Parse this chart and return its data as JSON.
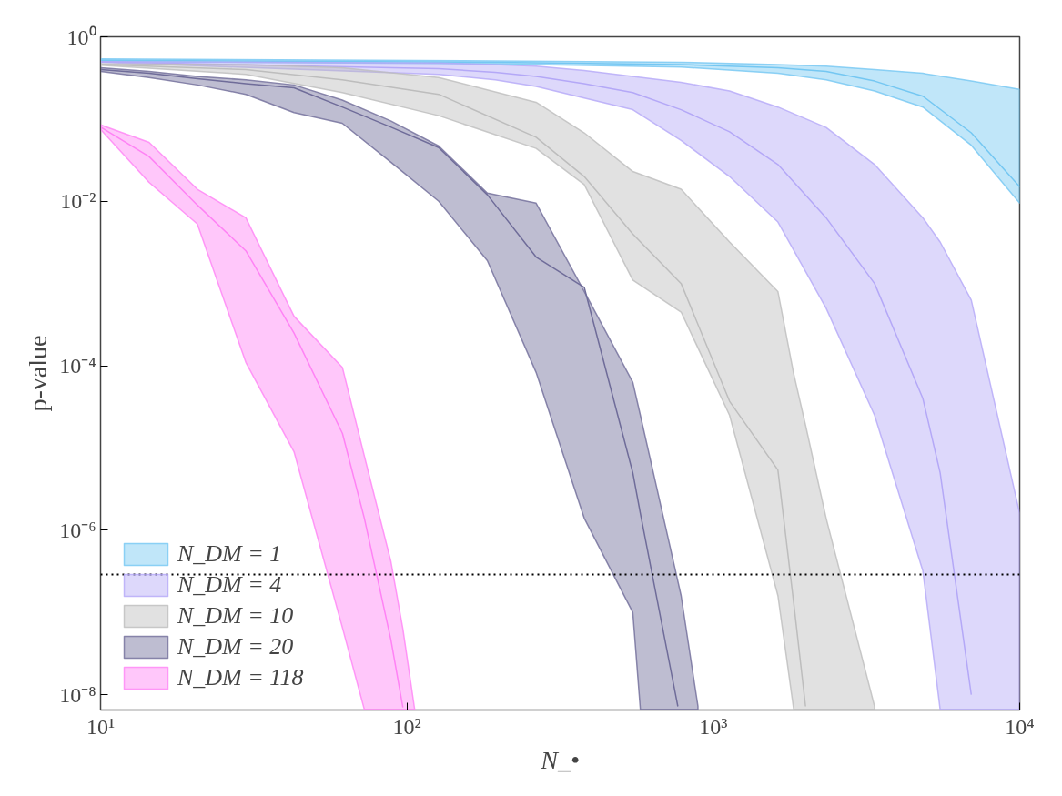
{
  "chart_data": {
    "type": "line",
    "xlabel": "N_•",
    "ylabel": "p-value",
    "xlim": [
      10,
      10000
    ],
    "ylim": [
      6.5e-09,
      1
    ],
    "log": "xy",
    "grid": false,
    "legend": "bottom left",
    "line_style": "solid",
    "xticks": [
      {
        "value": 10,
        "label": "10¹"
      },
      {
        "value": 100,
        "label": "10²"
      },
      {
        "value": 1000,
        "label": "10³"
      },
      {
        "value": 10000,
        "label": "10⁴"
      }
    ],
    "yticks": [
      {
        "value": 1e-08,
        "label": "10⁻⁸"
      },
      {
        "value": 1e-06,
        "label": "10⁻⁶"
      },
      {
        "value": 0.0001,
        "label": "10⁻⁴"
      },
      {
        "value": 0.01,
        "label": "10⁻²"
      },
      {
        "value": 1,
        "label": "10⁰"
      }
    ],
    "ref_lines": [
      {
        "axis": "y",
        "value": 2.9e-07,
        "color": "#000000",
        "line_style": "dotted"
      }
    ],
    "series": [
      {
        "name": "N_DM = 1",
        "color": "#74c7f2",
        "x": [
          10,
          194,
          785,
          1625,
          2335,
          3360,
          4830,
          6950,
          10000
        ],
        "values": [
          0.52,
          0.49,
          0.46,
          0.42,
          0.38,
          0.29,
          0.19,
          0.068,
          0.015
        ],
        "upper": [
          0.54,
          0.51,
          0.49,
          0.46,
          0.44,
          0.4,
          0.36,
          0.29,
          0.23
        ],
        "lower": [
          0.5,
          0.47,
          0.43,
          0.36,
          0.3,
          0.22,
          0.14,
          0.048,
          0.0095
        ]
      },
      {
        "name": "N_DM = 4",
        "color": "#b4a8f7",
        "x": [
          10,
          127,
          194,
          264,
          379,
          546,
          785,
          1130,
          1625,
          2335,
          3360,
          4830,
          5500,
          6950,
          10000
        ],
        "values": [
          0.495,
          0.41,
          0.37,
          0.33,
          0.27,
          0.21,
          0.13,
          0.07,
          0.028,
          0.0063,
          0.001,
          4e-05,
          5e-06,
          1e-08,
          null
        ],
        "upper": [
          0.5,
          0.48,
          0.46,
          0.44,
          0.39,
          0.33,
          0.28,
          0.22,
          0.14,
          0.079,
          0.028,
          0.0063,
          0.0032,
          0.00063,
          1.6e-06
        ],
        "lower": [
          0.49,
          0.35,
          0.3,
          0.25,
          0.18,
          0.13,
          0.055,
          0.02,
          0.0056,
          0.0005,
          2.5e-05,
          3.2e-07,
          6.6e-09,
          6.6e-09,
          6.6e-09
        ]
      },
      {
        "name": "N_DM = 10",
        "color": "#bdbdbd",
        "x": [
          10,
          29.8,
          61.5,
          127,
          264,
          379,
          546,
          785,
          1130,
          1625,
          1830,
          2000,
          2335,
          3360
        ],
        "values": [
          0.46,
          0.4,
          0.3,
          0.2,
          0.06,
          0.02,
          0.004,
          0.001,
          3.7e-05,
          5.4e-06,
          1.3e-07,
          7.2e-09,
          null,
          null
        ],
        "upper": [
          0.47,
          0.46,
          0.42,
          0.32,
          0.16,
          0.068,
          0.023,
          0.014,
          0.0032,
          0.0008,
          8e-05,
          1.9e-05,
          1.4e-06,
          7.2e-09
        ],
        "lower": [
          0.45,
          0.35,
          0.21,
          0.11,
          0.044,
          0.016,
          0.0011,
          0.00045,
          2.5e-05,
          1.6e-07,
          6.6e-09,
          6.6e-09,
          6.6e-09,
          6.6e-09
        ]
      },
      {
        "name": "N_DM = 20",
        "color": "#6f6c99",
        "x": [
          10,
          14.4,
          20.7,
          29.8,
          42.8,
          61.5,
          88.5,
          127,
          183,
          264,
          379,
          546,
          578,
          766,
          785,
          891
        ],
        "values": [
          0.4,
          0.36,
          0.31,
          0.27,
          0.24,
          0.14,
          0.08,
          0.045,
          0.012,
          0.0021,
          0.0009,
          5e-06,
          1.6e-06,
          7.2e-09,
          null,
          null
        ],
        "upper": [
          0.42,
          0.38,
          0.33,
          0.3,
          0.26,
          0.17,
          0.095,
          0.047,
          0.0126,
          0.0095,
          0.0008,
          6.3e-05,
          2.5e-05,
          2.4e-07,
          1.6e-07,
          7.2e-09
        ],
        "lower": [
          0.38,
          0.32,
          0.26,
          0.2,
          0.12,
          0.089,
          0.03,
          0.01,
          0.0019,
          8.3e-05,
          1.4e-06,
          1e-07,
          6.6e-09,
          6.6e-09,
          6.6e-09,
          6.6e-09
        ]
      },
      {
        "name": "N_DM = 118",
        "color": "#ff82f5",
        "x": [
          10,
          14.4,
          20.7,
          29.8,
          42.8,
          61.6,
          72.6,
          88.6,
          97,
          106
        ],
        "values": [
          0.08,
          0.035,
          0.009,
          0.0025,
          0.00025,
          1.5e-05,
          1.4e-06,
          4.7e-08,
          7e-09,
          null
        ],
        "upper": [
          0.085,
          0.052,
          0.014,
          0.0063,
          0.0004,
          9.5e-05,
          8e-06,
          4.2e-07,
          6.3e-08,
          6.6e-09
        ],
        "lower": [
          0.075,
          0.017,
          0.0053,
          0.00011,
          9e-06,
          6.5e-08,
          6.6e-09,
          6.6e-09,
          6.6e-09,
          6.6e-09
        ]
      }
    ]
  }
}
